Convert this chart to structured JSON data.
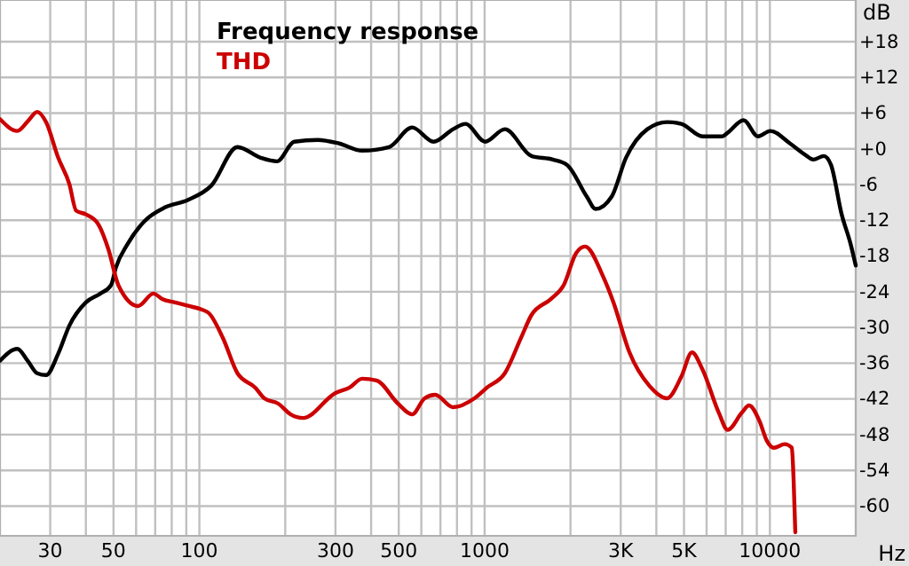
{
  "chart_data": {
    "type": "line",
    "xlabel": "Hz",
    "ylabel": "dB",
    "log": "x",
    "grid": true,
    "legend": "top left",
    "line_style": "solid",
    "marker": "none",
    "xlim": [
      20,
      20000
    ],
    "ylim": [
      -65,
      25
    ],
    "xticks": [
      {
        "value": 20,
        "label": null
      },
      30,
      {
        "value": 40,
        "label": null
      },
      50,
      {
        "value": 60,
        "label": null
      },
      {
        "value": 70,
        "label": null
      },
      {
        "value": 80,
        "label": null
      },
      {
        "value": 90,
        "label": null
      },
      100,
      {
        "value": 200,
        "label": null
      },
      300,
      {
        "value": 400,
        "label": null
      },
      500,
      {
        "value": 600,
        "label": null
      },
      {
        "value": 700,
        "label": null
      },
      {
        "value": 800,
        "label": null
      },
      {
        "value": 900,
        "label": null
      },
      1000,
      {
        "value": 2000,
        "label": null
      },
      {
        "value": 3000,
        "label": "3K"
      },
      {
        "value": 4000,
        "label": null
      },
      {
        "value": 5000,
        "label": "5K"
      },
      {
        "value": 6000,
        "label": null
      },
      {
        "value": 7000,
        "label": null
      },
      {
        "value": 8000,
        "label": null
      },
      {
        "value": 9000,
        "label": null
      },
      10000,
      {
        "value": 20000,
        "label": null
      }
    ],
    "yticks": [
      {
        "value": -60,
        "label": "-60"
      },
      {
        "value": -54,
        "label": "-54"
      },
      {
        "value": -48,
        "label": "-48"
      },
      {
        "value": -42,
        "label": "-42"
      },
      {
        "value": -36,
        "label": "-36"
      },
      {
        "value": -30,
        "label": "-30"
      },
      {
        "value": -24,
        "label": "-24"
      },
      {
        "value": -18,
        "label": "-18"
      },
      {
        "value": -12,
        "label": "-12"
      },
      {
        "value": -6,
        "label": "-6"
      },
      {
        "value": 0,
        "label": "+0"
      },
      {
        "value": 6,
        "label": "+6"
      },
      {
        "value": 12,
        "label": "+12"
      },
      {
        "value": 18,
        "label": "+18"
      }
    ],
    "series": [
      {
        "name": "Frequency response",
        "color": "#000000",
        "x": [
          20,
          23,
          25,
          27,
          29,
          32,
          35,
          40,
          45,
          49,
          51,
          56,
          64,
          76,
          91,
          110,
          136,
          164,
          187,
          215,
          260,
          309,
          372,
          462,
          557,
          662,
          775,
          857,
          1004,
          1177,
          1460,
          1735,
          1946,
          2280,
          2450,
          2790,
          3130,
          3720,
          4360,
          4890,
          5810,
          6810,
          7110,
          8090,
          9080,
          10040,
          11770,
          13210,
          14200,
          15460,
          16380,
          17850,
          19190,
          20000
        ],
        "values": [
          -35.6,
          -33.6,
          -35.6,
          -37.7,
          -38,
          -34.4,
          -29.7,
          -25.8,
          -24.3,
          -22.9,
          -19.9,
          -16,
          -12.2,
          -9.8,
          -8.6,
          -6.2,
          0.3,
          -1.5,
          -2.1,
          1.2,
          1.5,
          0.9,
          -0.3,
          0.3,
          3.6,
          1.2,
          3.3,
          4.2,
          1.2,
          3.3,
          -1.2,
          -1.8,
          -2.7,
          -8,
          -10.1,
          -8,
          -1.5,
          3.3,
          4.5,
          4.2,
          2.1,
          2.1,
          2.7,
          4.8,
          2.1,
          3,
          0.9,
          -0.9,
          -1.8,
          -1.2,
          -2.7,
          -11,
          -16,
          -19.6
        ]
      },
      {
        "name": "THD",
        "color": "#cc0000",
        "x": [
          20,
          23,
          25.2,
          27,
          29,
          32,
          35,
          37,
          40,
          44,
          48,
          52,
          61,
          69,
          74,
          82,
          92,
          102,
          108,
          121,
          136,
          157,
          169,
          189,
          209,
          231,
          300,
          336,
          372,
          418,
          497,
          557,
          616,
          671,
          775,
          921,
          1019,
          1177,
          1340,
          1460,
          1710,
          1893,
          2094,
          2250,
          2600,
          2830,
          3220,
          3780,
          4360,
          4890,
          5330,
          5810,
          6620,
          7110,
          7980,
          8450,
          9210,
          9750,
          10330,
          11270,
          11940,
          12110,
          12280
        ],
        "values": [
          5,
          3,
          4.8,
          6.2,
          4.5,
          -1.5,
          -5.9,
          -10.4,
          -11,
          -12.5,
          -16.9,
          -22.9,
          -26.4,
          -24.3,
          -25.2,
          -25.8,
          -26.4,
          -27,
          -27.6,
          -31.8,
          -37.7,
          -40.1,
          -41.9,
          -42.8,
          -44.6,
          -45.2,
          -41,
          -40.1,
          -38.6,
          -38.9,
          -42.8,
          -44.6,
          -41.9,
          -41.3,
          -43.4,
          -41.9,
          -40.1,
          -37.7,
          -31.8,
          -27.9,
          -25.2,
          -22.9,
          -17.5,
          -16.4,
          -21.4,
          -25.8,
          -34.2,
          -39.8,
          -41.9,
          -38.3,
          -34.2,
          -37.1,
          -44.3,
          -47.2,
          -44.3,
          -43.1,
          -45.8,
          -49,
          -50.2,
          -49.6,
          -50.2,
          -55.5,
          -64.4
        ]
      }
    ]
  }
}
